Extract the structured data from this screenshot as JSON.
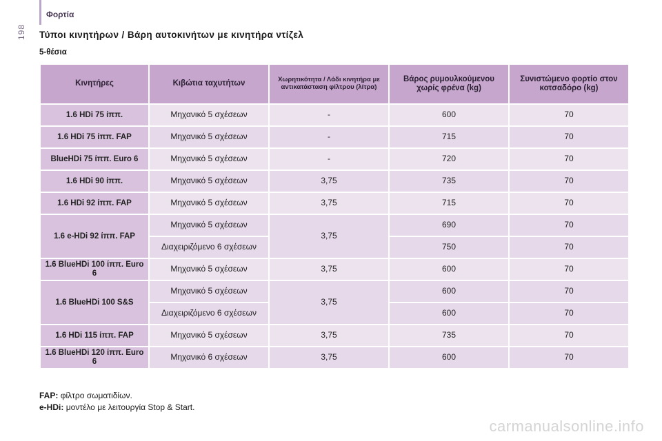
{
  "page": {
    "section": "Φορτία",
    "number": "198"
  },
  "title": "Τύποι κινητήρων / Βάρη αυτοκινήτων με κινητήρα ντίζελ",
  "subtitle": "5-θέσια",
  "table": {
    "headers": [
      "Κινητήρες",
      "Κιβώτια ταχυτήτων",
      "Χωρητικότητα / Λάδι κινητήρα με αντικατάσταση φίλτρου (λίτρα)",
      "Βάρος ρυμουλκούμενου χωρίς φρένα (kg)",
      "Συνιστώμενο φορτίο στον κοτσαδόρο (kg)"
    ],
    "rows": [
      {
        "engine": "1.6 HDi 75 ίππ.",
        "gearbox": "Μηχανικό 5 σχέσεων",
        "oil": "-",
        "weight": "600",
        "load": "70"
      },
      {
        "engine": "1.6 HDi 75 ίππ. FAP",
        "gearbox": "Μηχανικό 5 σχέσεων",
        "oil": "-",
        "weight": "715",
        "load": "70"
      },
      {
        "engine": "BlueHDi 75 ίππ. Euro 6",
        "gearbox": "Μηχανικό 5 σχέσεων",
        "oil": "-",
        "weight": "720",
        "load": "70"
      },
      {
        "engine": "1.6 HDi 90 ίππ.",
        "gearbox": "Μηχανικό 5 σχέσεων",
        "oil": "3,75",
        "weight": "735",
        "load": "70"
      },
      {
        "engine": "1.6 HDi 92 ίππ. FAP",
        "gearbox": "Μηχανικό 5 σχέσεων",
        "oil": "3,75",
        "weight": "715",
        "load": "70"
      },
      {
        "engine": "1.6 e-HDi 92 ίππ. FAP",
        "gearbox": "Μηχανικό 5 σχέσεων",
        "oil": "3,75",
        "weight": "690",
        "load": "70",
        "gearbox2": "Διαχειριζόμενο 6 σχέσεων",
        "weight2": "750",
        "load2": "70"
      },
      {
        "engine": "1.6 BlueHDi 100 ίππ. Euro 6",
        "gearbox": "Μηχανικό 5 σχέσεων",
        "oil": "3,75",
        "weight": "600",
        "load": "70"
      },
      {
        "engine": "1.6 BlueHDi 100 S&S",
        "gearbox": "Μηχανικό 5 σχέσεων",
        "oil": "3,75",
        "weight": "600",
        "load": "70",
        "gearbox2": "Διαχειριζόμενο 6 σχέσεων",
        "weight2": "600",
        "load2": "70"
      },
      {
        "engine": "1.6 HDi 115 ίππ. FAP",
        "gearbox": "Μηχανικό 5 σχέσεων",
        "oil": "3,75",
        "weight": "735",
        "load": "70"
      },
      {
        "engine": "1.6 BlueHDi 120 ίππ. Euro 6",
        "gearbox": "Μηχανικό 6 σχέσεων",
        "oil": "3,75",
        "weight": "600",
        "load": "70"
      }
    ]
  },
  "footnotes": [
    {
      "term": "FAP:",
      "text": "φίλτρο σωματιδίων."
    },
    {
      "term": "e-HDi:",
      "text": "μοντέλο με λειτουργία Stop & Start."
    }
  ],
  "watermark": "carmanualsonline.info"
}
